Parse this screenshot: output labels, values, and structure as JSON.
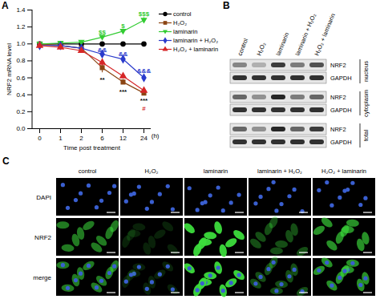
{
  "chart_data": {
    "type": "line",
    "label": "A",
    "categories": [
      "0",
      "1",
      "2",
      "6",
      "12",
      "24"
    ],
    "xlabel": "Time post treatment",
    "x_unit": "(h)",
    "ylabel": "NRF2 mRNA level",
    "ylim": [
      0,
      1.4
    ],
    "yticks": [
      {
        "value": 0,
        "label": "0.0"
      },
      {
        "value": 0.2,
        "label": "0.2"
      },
      {
        "value": 0.4,
        "label": "0.4"
      },
      {
        "value": 0.6,
        "label": "0.6"
      },
      {
        "value": 0.8,
        "label": "0.8"
      },
      {
        "value": 1,
        "label": "1.0"
      },
      {
        "value": 1.2,
        "label": "1.2"
      },
      {
        "value": 1.4,
        "label": "1.4"
      }
    ],
    "legend": "right",
    "series": [
      {
        "name": "control",
        "color": "#000000",
        "marker": "circle",
        "values": [
          1.0,
          1.0,
          1.0,
          1.0,
          1.0,
          1.0
        ],
        "errors": [
          0.01,
          0.01,
          0.01,
          0.01,
          0.01,
          0.01
        ]
      },
      {
        "name": "H₂O₂",
        "color": "#8b4513",
        "marker": "square",
        "values": [
          1.0,
          0.98,
          0.95,
          0.72,
          0.55,
          0.42
        ],
        "errors": [
          0.02,
          0.03,
          0.03,
          0.06,
          0.03,
          0.03
        ]
      },
      {
        "name": "laminarin",
        "color": "#33cc33",
        "marker": "triangle-down",
        "values": [
          1.0,
          1.01,
          1.02,
          1.08,
          1.15,
          1.28
        ],
        "errors": [
          0.02,
          0.02,
          0.02,
          0.02,
          0.02,
          0.03
        ]
      },
      {
        "name": "laminarin + H₂O₂",
        "color": "#2a3bcc",
        "marker": "diamond",
        "values": [
          0.98,
          0.98,
          0.95,
          0.88,
          0.82,
          0.6
        ],
        "errors": [
          0.02,
          0.02,
          0.02,
          0.03,
          0.03,
          0.03
        ]
      },
      {
        "name": "H₂O₂ + laminarin",
        "color": "#d62728",
        "marker": "triangle",
        "values": [
          0.98,
          0.96,
          0.92,
          0.78,
          0.62,
          0.45
        ],
        "errors": [
          0.02,
          0.02,
          0.03,
          0.04,
          0.03,
          0.03
        ]
      }
    ],
    "annotations": [
      {
        "x": "6",
        "y": 1.14,
        "text": "$$",
        "color": "#33cc33"
      },
      {
        "x": "12",
        "y": 1.21,
        "text": "$",
        "color": "#33cc33"
      },
      {
        "x": "24",
        "y": 1.35,
        "text": "$$$",
        "color": "#33cc33"
      },
      {
        "x": "6",
        "y": 0.93,
        "text": "&&",
        "color": "#2a3bcc"
      },
      {
        "x": "12",
        "y": 0.88,
        "text": "&&",
        "color": "#2a3bcc"
      },
      {
        "x": "24",
        "y": 0.68,
        "text": "&&&",
        "color": "#2a3bcc"
      },
      {
        "x": "6",
        "y": 0.58,
        "text": "**",
        "color": "#000000"
      },
      {
        "x": "12",
        "y": 0.44,
        "text": "***",
        "color": "#000000"
      },
      {
        "x": "24",
        "y": 0.33,
        "text": "***",
        "color": "#000000"
      },
      {
        "x": "24",
        "y": 0.24,
        "text": "#",
        "color": "#d62728"
      }
    ]
  },
  "blot": {
    "label": "B",
    "lanes": [
      "control",
      "H₂O₂",
      "laminarin",
      "laminarin + H₂O₂",
      "H₂O₂ + laminarin"
    ],
    "rows": [
      {
        "name": "NRF2",
        "fraction": "nucleus",
        "intensity": [
          0.45,
          0.25,
          0.8,
          0.5,
          0.7
        ]
      },
      {
        "name": "GAPDH",
        "fraction": "nucleus",
        "intensity": [
          0.85,
          0.85,
          0.85,
          0.85,
          0.85
        ]
      },
      {
        "name": "NRF2",
        "fraction": "cytoplasm",
        "intensity": [
          0.6,
          0.4,
          0.9,
          0.5,
          0.6
        ]
      },
      {
        "name": "GAPDH",
        "fraction": "cytoplasm",
        "intensity": [
          0.85,
          0.85,
          0.85,
          0.85,
          0.85
        ]
      },
      {
        "name": "NRF2",
        "fraction": "total",
        "intensity": [
          0.6,
          0.4,
          0.9,
          0.6,
          0.8
        ]
      },
      {
        "name": "GAPDH",
        "fraction": "total",
        "intensity": [
          0.85,
          0.85,
          0.85,
          0.85,
          0.85
        ]
      }
    ]
  },
  "images": {
    "label": "C",
    "columns": [
      "control",
      "H₂O₂",
      "laminarin",
      "laminarin + H₂O₂",
      "H₂O₂ + laminarin"
    ],
    "rows": [
      "DAPI",
      "NRF2",
      "merge"
    ],
    "nrf2_signal": [
      0.55,
      0.15,
      0.95,
      0.35,
      0.65
    ]
  }
}
